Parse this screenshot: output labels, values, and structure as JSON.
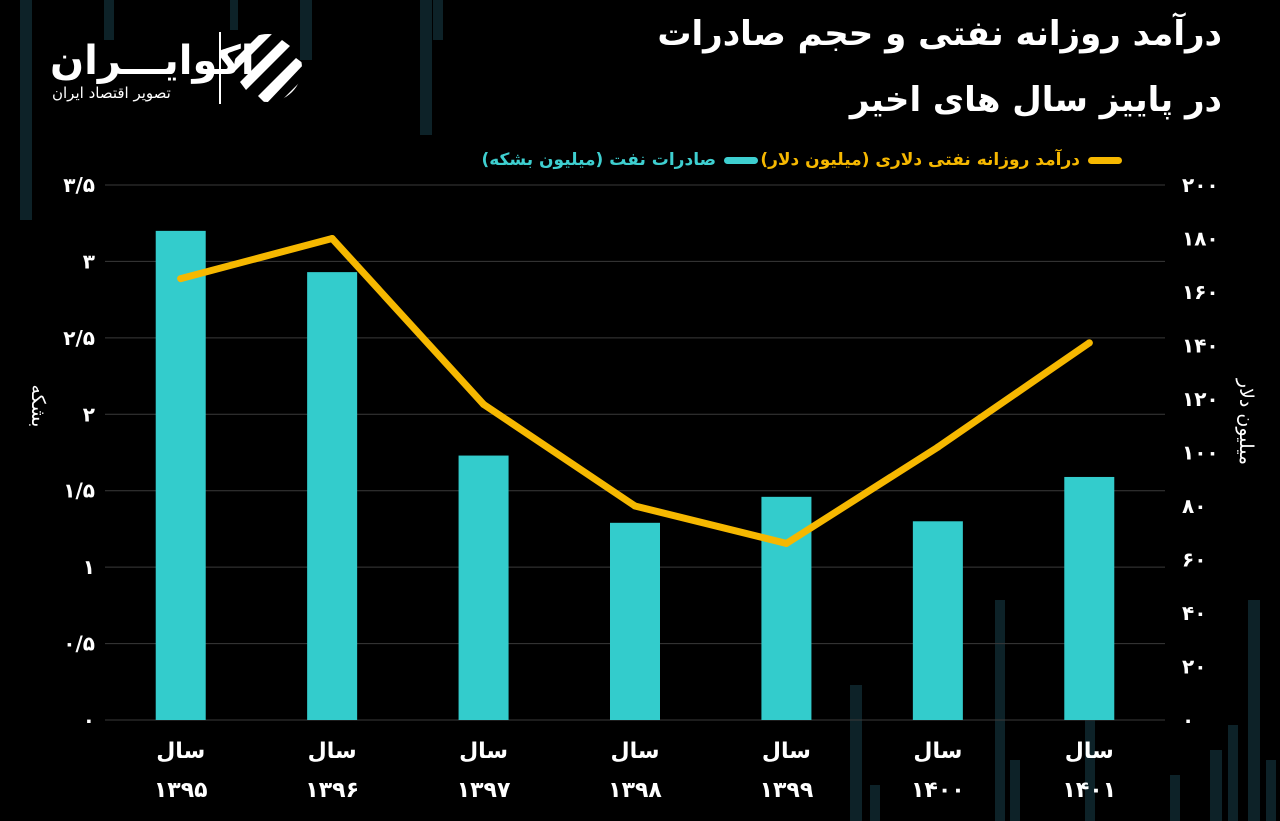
{
  "title": {
    "line1": "درآمد روزانه نفتی و حجم صادرات",
    "line2": "در پاییز سال های اخیر"
  },
  "logo": {
    "name": "اکوایـــران",
    "subtitle": "تصویر اقتصاد ایران",
    "icon": "ecoiran-stripes-logo"
  },
  "colors": {
    "bars": "#33cccc",
    "line": "#f6b800",
    "grid": "#3a3a3a",
    "background": "#000000"
  },
  "chart_data": {
    "type": "bar+line",
    "categories": [
      {
        "line1": "سال",
        "line2": "۱۳۹۵"
      },
      {
        "line1": "سال",
        "line2": "۱۳۹۶"
      },
      {
        "line1": "سال",
        "line2": "۱۳۹۷"
      },
      {
        "line1": "سال",
        "line2": "۱۳۹۸"
      },
      {
        "line1": "سال",
        "line2": "۱۳۹۹"
      },
      {
        "line1": "سال",
        "line2": "۱۴۰۰"
      },
      {
        "line1": "سال",
        "line2": "۱۴۰۱"
      }
    ],
    "series": [
      {
        "name": "صادرات نفت (میلیون بشکه)",
        "type": "bar",
        "axis": "left",
        "values": [
          3.2,
          2.93,
          1.73,
          1.29,
          1.46,
          1.3,
          1.59
        ]
      },
      {
        "name": "درآمد روزانه نفتی دلاری (میلیون دلار)",
        "type": "line",
        "axis": "right",
        "values": [
          165,
          180,
          118,
          80,
          66,
          102,
          141
        ]
      }
    ],
    "left_axis": {
      "label": "بشکه",
      "range": [
        0,
        3.5
      ],
      "ticks": [
        {
          "value": 0,
          "label": "۰"
        },
        {
          "value": 0.5,
          "label": "۰/۵"
        },
        {
          "value": 1,
          "label": "۱"
        },
        {
          "value": 1.5,
          "label": "۱/۵"
        },
        {
          "value": 2,
          "label": "۲"
        },
        {
          "value": 2.5,
          "label": "۲/۵"
        },
        {
          "value": 3,
          "label": "۳"
        },
        {
          "value": 3.5,
          "label": "۳/۵"
        }
      ]
    },
    "right_axis": {
      "label": "میلیون دلار",
      "range": [
        0,
        200
      ],
      "ticks": [
        {
          "value": 0,
          "label": "۰"
        },
        {
          "value": 20,
          "label": "۲۰"
        },
        {
          "value": 40,
          "label": "۴۰"
        },
        {
          "value": 60,
          "label": "۶۰"
        },
        {
          "value": 80,
          "label": "۸۰"
        },
        {
          "value": 100,
          "label": "۱۰۰"
        },
        {
          "value": 120,
          "label": "۱۲۰"
        },
        {
          "value": 140,
          "label": "۱۴۰"
        },
        {
          "value": 160,
          "label": "۱۶۰"
        },
        {
          "value": 180,
          "label": "۱۸۰"
        },
        {
          "value": 200,
          "label": "۲۰۰"
        }
      ]
    },
    "grid": true,
    "legend_position": "top"
  }
}
